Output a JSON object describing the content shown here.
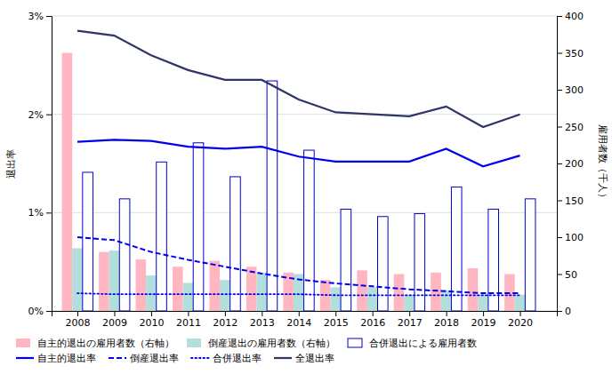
{
  "chart_data": {
    "type": "bar",
    "x": [
      2008,
      2009,
      2010,
      2011,
      2012,
      2013,
      2014,
      2015,
      2016,
      2017,
      2018,
      2019,
      2020
    ],
    "xlim": [
      2007.3,
      2021.0
    ],
    "xticks": [
      2008,
      2009,
      2010,
      2011,
      2012,
      2013,
      2014,
      2015,
      2016,
      2017,
      2018,
      2019,
      2020
    ],
    "ylabel": "退出率",
    "ylim": [
      0,
      0.03
    ],
    "yticks": [
      {
        "value": 0,
        "label": "0%"
      },
      {
        "value": 0.01,
        "label": "1%"
      },
      {
        "value": 0.02,
        "label": "2%"
      },
      {
        "value": 0.03,
        "label": "3%"
      }
    ],
    "y2label": "雇用者数（千人）",
    "y2lim": [
      0,
      400
    ],
    "y2ticks": [
      0,
      50,
      100,
      150,
      200,
      250,
      300,
      350,
      400
    ],
    "grid": true,
    "legend": "bottom",
    "series": [
      {
        "name": "自主的退出の雇用者数（右軸）",
        "type": "bar",
        "axis": "y2",
        "color": "#ffb6c1",
        "values": [
          350,
          80,
          70,
          60,
          68,
          60,
          52,
          42,
          55,
          50,
          52,
          58,
          50
        ]
      },
      {
        "name": "倒産退出の雇用者数（右軸）",
        "type": "bar",
        "axis": "y2",
        "color": "#b2dfdb",
        "values": [
          85,
          82,
          48,
          38,
          42,
          52,
          50,
          32,
          32,
          22,
          28,
          22,
          22
        ]
      },
      {
        "name": "合併退出による雇用者数",
        "type": "bar",
        "axis": "y2",
        "color": "#0000cc",
        "line_style": "solid",
        "values": [
          188,
          152,
          202,
          228,
          182,
          312,
          218,
          138,
          128,
          132,
          168,
          138,
          152
        ]
      },
      {
        "name": "自主的退出率",
        "type": "line",
        "color": "#0000ee",
        "line_style": "solid",
        "values": [
          0.0172,
          0.0174,
          0.0173,
          0.0167,
          0.0165,
          0.0167,
          0.0157,
          0.0152,
          0.0152,
          0.0152,
          0.0165,
          0.0147,
          0.0158
        ]
      },
      {
        "name": "倒産退出率",
        "type": "line",
        "color": "#0000ee",
        "line_style": "dashed",
        "values": [
          0.0075,
          0.0072,
          0.006,
          0.0052,
          0.0045,
          0.0038,
          0.0032,
          0.0028,
          0.0025,
          0.0022,
          0.002,
          0.0018,
          0.0018
        ]
      },
      {
        "name": "合併退出率",
        "type": "line",
        "color": "#0000ee",
        "line_style": "dotted",
        "values": [
          0.0018,
          0.0017,
          0.0017,
          0.0017,
          0.0017,
          0.0017,
          0.0017,
          0.0016,
          0.0016,
          0.0016,
          0.0016,
          0.0016,
          0.0016
        ]
      },
      {
        "name": "全退出率",
        "type": "line",
        "color": "#2f3566",
        "line_style": "solid",
        "values": [
          0.0285,
          0.028,
          0.026,
          0.0245,
          0.0235,
          0.0235,
          0.0215,
          0.0202,
          0.02,
          0.0198,
          0.0208,
          0.0187,
          0.02
        ]
      }
    ]
  }
}
